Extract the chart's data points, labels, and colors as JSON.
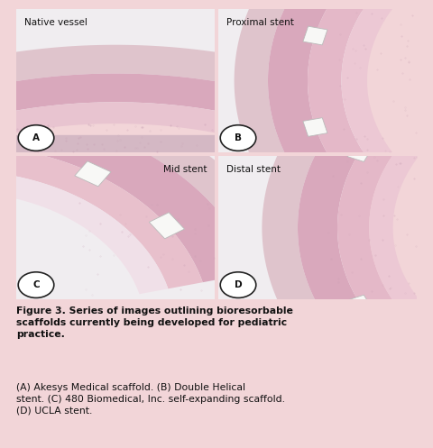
{
  "figure_bg": "#f2d5d8",
  "panel_outer_bg": "#e8c8cc",
  "labels": [
    "A",
    "B",
    "C",
    "D"
  ],
  "panel_titles": [
    "Native vessel",
    "Proximal stent",
    "Mid stent",
    "Distal stent"
  ],
  "title_align": [
    "left",
    "left",
    "right",
    "left"
  ],
  "caption_bold": "Figure 3. Series of images outlining bioresorbable scaffolds currently being developed for pediatric practice.",
  "caption_normal": " (A) Akesys Medical scaffold. (B) Double Helical stent. (C) 480 Biomedical, Inc. self-expanding scaffold. (D) UCLA stent.",
  "lumen_color": "#f0ecee",
  "tissue_outer": "#e0b8c4",
  "tissue_mid": "#d4a0b4",
  "tissue_inner": "#e8c8d4",
  "adventitia": "#ddc0c8",
  "stent_fill": "#f5f5f5",
  "stent_edge": "#c8c8c8",
  "label_circle_fill": "white",
  "label_circle_edge": "#222222",
  "title_color": "#111111",
  "caption_color": "#111111",
  "panel_gap_color": "#f2d5d8"
}
